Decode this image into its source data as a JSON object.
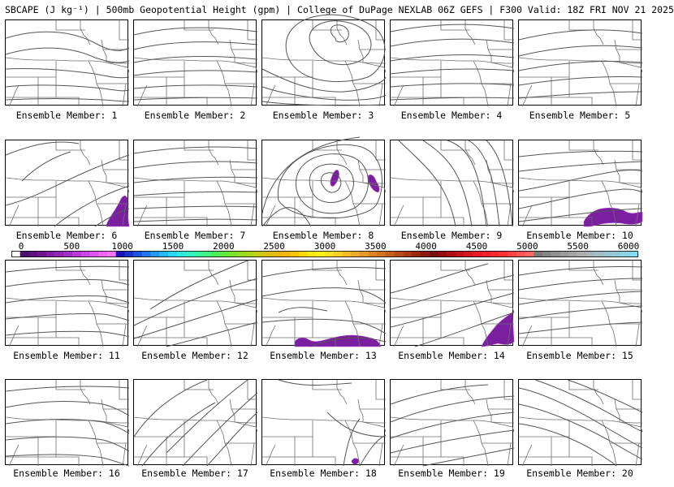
{
  "title": "SBCAPE (J kg⁻¹) | 500mb Geopotential Height (gpm) | College of DuPage NEXLAB 06Z GEFS | F300 Valid: 18Z FRI NOV 21 2025",
  "caption_prefix": "Ensemble Member:",
  "members": [
    {
      "label": "Ensemble Member: 1",
      "number": 1
    },
    {
      "label": "Ensemble Member: 2",
      "number": 2
    },
    {
      "label": "Ensemble Member: 3",
      "number": 3
    },
    {
      "label": "Ensemble Member: 4",
      "number": 4
    },
    {
      "label": "Ensemble Member: 5",
      "number": 5
    },
    {
      "label": "Ensemble Member: 6",
      "number": 6
    },
    {
      "label": "Ensemble Member: 7",
      "number": 7
    },
    {
      "label": "Ensemble Member: 8",
      "number": 8
    },
    {
      "label": "Ensemble Member: 9",
      "number": 9
    },
    {
      "label": "Ensemble Member: 10",
      "number": 10
    },
    {
      "label": "Ensemble Member: 11",
      "number": 11
    },
    {
      "label": "Ensemble Member: 12",
      "number": 12
    },
    {
      "label": "Ensemble Member: 13",
      "number": 13
    },
    {
      "label": "Ensemble Member: 14",
      "number": 14
    },
    {
      "label": "Ensemble Member: 15",
      "number": 15
    },
    {
      "label": "Ensemble Member: 16",
      "number": 16
    },
    {
      "label": "Ensemble Member: 17",
      "number": 17
    },
    {
      "label": "Ensemble Member: 18",
      "number": 18
    },
    {
      "label": "Ensemble Member: 19",
      "number": 19
    },
    {
      "label": "Ensemble Member: 20",
      "number": 20
    }
  ],
  "colorbar": {
    "labels": [
      "0",
      "500",
      "1000",
      "1500",
      "2000",
      "2500",
      "3000",
      "3500",
      "4000",
      "4500",
      "5000",
      "5500",
      "6000"
    ],
    "min": 0,
    "max": 6000,
    "units": "J kg⁻¹"
  },
  "colors": {
    "cape_fill": "#7a1fa0",
    "cape_fill_light": "#b04ad0",
    "contour": "#555555",
    "border": "#6e6e6e"
  }
}
